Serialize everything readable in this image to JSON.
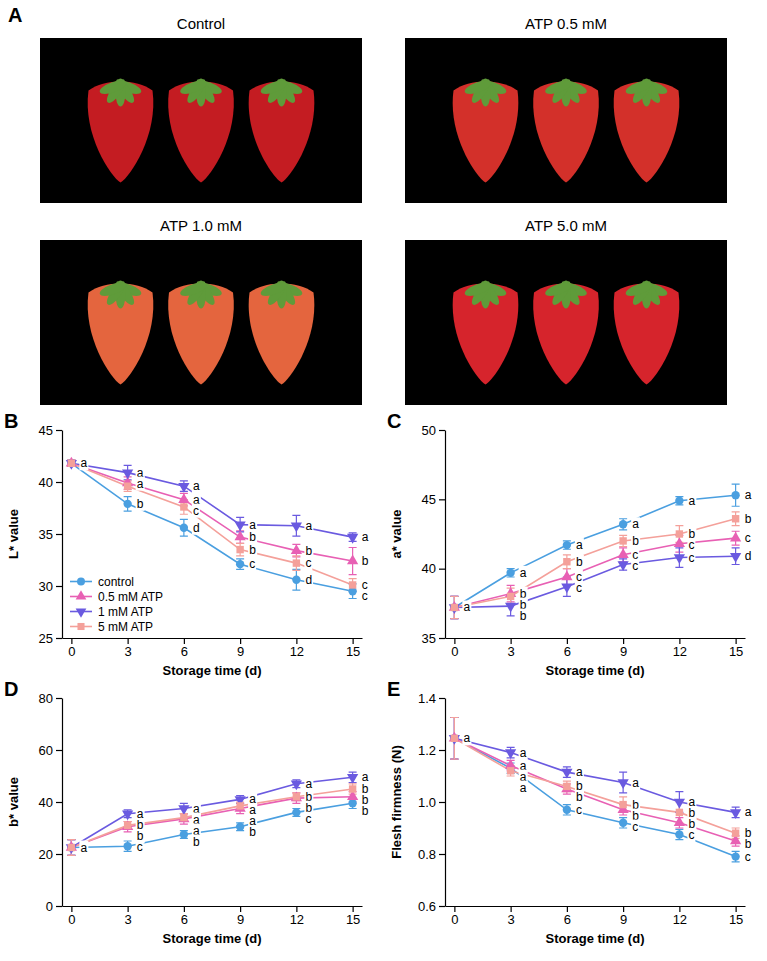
{
  "photos": {
    "panel": "A",
    "labels": [
      "Control",
      "ATP 0.5 mM",
      "ATP 1.0 mM",
      "ATP 5.0 mM"
    ]
  },
  "chart_data": [
    {
      "type": "line",
      "panel": "B",
      "xlabel": "Storage time (d)",
      "ylabel": "L* value",
      "x": [
        0,
        3,
        6,
        9,
        12,
        15
      ],
      "xlim": [
        -0.5,
        15.5
      ],
      "xticks": [
        0,
        3,
        6,
        9,
        12,
        15
      ],
      "ylim": [
        25,
        45
      ],
      "yticks": [
        25,
        30,
        35,
        40,
        45
      ],
      "grid": false,
      "legend": "lower left",
      "series": [
        {
          "name": "control",
          "color": "#4a9fe0",
          "marker": "circle",
          "values": [
            41.8,
            37.9,
            35.6,
            32.1,
            30.6,
            29.5
          ],
          "errors": [
            0.3,
            0.7,
            0.8,
            0.5,
            1.0,
            0.7
          ],
          "letters": [
            "a",
            "b",
            "d",
            "c",
            "d",
            "c"
          ]
        },
        {
          "name": "0.5 mM ATP",
          "color": "#e860b4",
          "marker": "triangle",
          "values": [
            41.8,
            39.9,
            38.3,
            34.7,
            33.4,
            32.4
          ],
          "errors": [
            0.3,
            0.6,
            0.6,
            0.6,
            0.6,
            1.3
          ],
          "letters": [
            null,
            "a",
            "a",
            "b",
            "b",
            "b"
          ]
        },
        {
          "name": "1 mM ATP",
          "color": "#6a5ae0",
          "marker": "triangle-down",
          "values": [
            41.8,
            40.9,
            39.6,
            35.9,
            35.8,
            34.7
          ],
          "errors": [
            0.3,
            0.7,
            0.5,
            0.7,
            1.0,
            0.4
          ],
          "letters": [
            null,
            "a",
            "a",
            "a",
            "a",
            "a"
          ]
        },
        {
          "name": "5 mM ATP",
          "color": "#f4a09a",
          "marker": "square",
          "values": [
            41.8,
            39.6,
            37.6,
            33.5,
            32.2,
            30.1
          ],
          "errors": [
            0.3,
            0.5,
            0.7,
            0.6,
            0.7,
            0.6
          ],
          "letters": [
            null,
            null,
            "c",
            "b",
            "c",
            "c"
          ]
        }
      ]
    },
    {
      "type": "line",
      "panel": "C",
      "xlabel": "Storage time (d)",
      "ylabel": "a* value",
      "x": [
        0,
        3,
        6,
        9,
        12,
        15
      ],
      "xlim": [
        -0.5,
        15.5
      ],
      "xticks": [
        0,
        3,
        6,
        9,
        12,
        15
      ],
      "ylim": [
        35,
        50
      ],
      "yticks": [
        35,
        40,
        45,
        50
      ],
      "grid": false,
      "series": [
        {
          "color": "#4a9fe0",
          "marker": "circle",
          "values": [
            37.2,
            39.7,
            41.7,
            43.2,
            44.9,
            45.3
          ],
          "errors": [
            0.8,
            0.3,
            0.3,
            0.4,
            0.3,
            0.8
          ],
          "letters": [
            "a",
            "a",
            "a",
            "a",
            "a",
            "a"
          ]
        },
        {
          "color": "#e860b4",
          "marker": "triangle",
          "values": [
            37.2,
            38.2,
            39.4,
            41.0,
            41.8,
            42.2
          ],
          "errors": [
            0.8,
            0.6,
            0.6,
            0.5,
            0.6,
            0.5
          ],
          "letters": [
            null,
            "b",
            "c",
            "c",
            "c",
            "c"
          ]
        },
        {
          "color": "#6a5ae0",
          "marker": "triangle-down",
          "values": [
            37.2,
            37.3,
            38.7,
            40.3,
            40.8,
            40.9
          ],
          "errors": [
            0.8,
            0.7,
            0.7,
            0.4,
            0.7,
            0.6
          ],
          "letters": [
            null,
            "b",
            "c",
            "c",
            "c",
            "d"
          ]
        },
        {
          "color": "#f4a09a",
          "marker": "square",
          "values": [
            37.2,
            38.0,
            40.5,
            42.0,
            42.5,
            43.6
          ],
          "errors": [
            0.8,
            0.6,
            0.5,
            0.4,
            0.6,
            0.5
          ],
          "letters": [
            null,
            "b",
            "b",
            "b",
            "b",
            "b"
          ]
        }
      ]
    },
    {
      "type": "line",
      "panel": "D",
      "xlabel": "Storage time (d)",
      "ylabel": "b* value",
      "x": [
        0,
        3,
        6,
        9,
        12,
        15
      ],
      "xlim": [
        -0.5,
        15.5
      ],
      "xticks": [
        0,
        3,
        6,
        9,
        12,
        15
      ],
      "ylim": [
        0,
        80
      ],
      "yticks": [
        0,
        20,
        40,
        60,
        80
      ],
      "grid": false,
      "series": [
        {
          "color": "#4a9fe0",
          "marker": "circle",
          "values": [
            22.5,
            23,
            27.5,
            30.5,
            36,
            39.5
          ],
          "errors": [
            3,
            2,
            1.5,
            1.5,
            1.5,
            2
          ],
          "letters": [
            "a",
            "c",
            "b",
            "b",
            "c",
            "b"
          ]
        },
        {
          "color": "#e860b4",
          "marker": "triangle",
          "values": [
            22.5,
            30.5,
            33.5,
            37.5,
            41.5,
            42
          ],
          "errors": [
            3,
            2,
            2,
            2,
            2,
            2
          ],
          "letters": [
            null,
            "b",
            "a",
            "a",
            "b",
            "b"
          ]
        },
        {
          "color": "#6a5ae0",
          "marker": "triangle-down",
          "values": [
            22.5,
            35.5,
            37.5,
            41,
            47,
            49.5
          ],
          "errors": [
            3,
            1.5,
            2,
            1.5,
            1.5,
            2
          ],
          "letters": [
            null,
            "a",
            "a",
            "a",
            "a",
            "a"
          ]
        },
        {
          "color": "#f4a09a",
          "marker": "square",
          "values": [
            22.5,
            31,
            34,
            38.5,
            42,
            45
          ],
          "errors": [
            3,
            1.5,
            1.5,
            1.5,
            1.5,
            2
          ],
          "letters": [
            null,
            "b",
            "a",
            "a",
            "b",
            "b"
          ]
        }
      ]
    },
    {
      "type": "line",
      "panel": "E",
      "xlabel": "Storage time (d)",
      "ylabel": "Flesh firmness (N)",
      "x": [
        0,
        3,
        6,
        9,
        12,
        15
      ],
      "xlim": [
        -0.5,
        15.5
      ],
      "xticks": [
        0,
        3,
        6,
        9,
        12,
        15
      ],
      "ylim": [
        0.6,
        1.4
      ],
      "yticks": [
        0.6,
        0.8,
        {
          "value": 1,
          "label": "1.0"
        },
        1.2,
        1.4
      ],
      "grid": false,
      "series": [
        {
          "color": "#4a9fe0",
          "marker": "circle",
          "values": [
            1.245,
            1.13,
            0.97,
            0.92,
            0.875,
            0.79
          ],
          "errors": [
            0.08,
            0.02,
            0.02,
            0.02,
            0.02,
            0.02
          ],
          "letters": [
            "a",
            "a",
            "c",
            "c",
            "c",
            "c"
          ]
        },
        {
          "color": "#e860b4",
          "marker": "triangle",
          "values": [
            1.245,
            1.14,
            1.05,
            0.97,
            0.92,
            0.85
          ],
          "errors": [
            0.08,
            0.02,
            0.02,
            0.02,
            0.02,
            0.02
          ],
          "letters": [
            null,
            "a",
            "b",
            "b",
            "b",
            "b"
          ]
        },
        {
          "color": "#6a5ae0",
          "marker": "triangle-down",
          "values": [
            1.245,
            1.19,
            1.115,
            1.075,
            1.0,
            0.96
          ],
          "errors": [
            0.08,
            0.02,
            0.02,
            0.04,
            0.04,
            0.02
          ],
          "letters": [
            null,
            "a",
            "a",
            "a",
            "a",
            "a"
          ]
        },
        {
          "color": "#f4a09a",
          "marker": "square",
          "values": [
            1.245,
            1.12,
            1.06,
            0.99,
            0.96,
            0.88
          ],
          "errors": [
            0.08,
            0.02,
            0.02,
            0.03,
            0.04,
            0.02
          ],
          "letters": [
            null,
            "a",
            "b",
            "b",
            "b",
            "b"
          ]
        }
      ]
    }
  ]
}
